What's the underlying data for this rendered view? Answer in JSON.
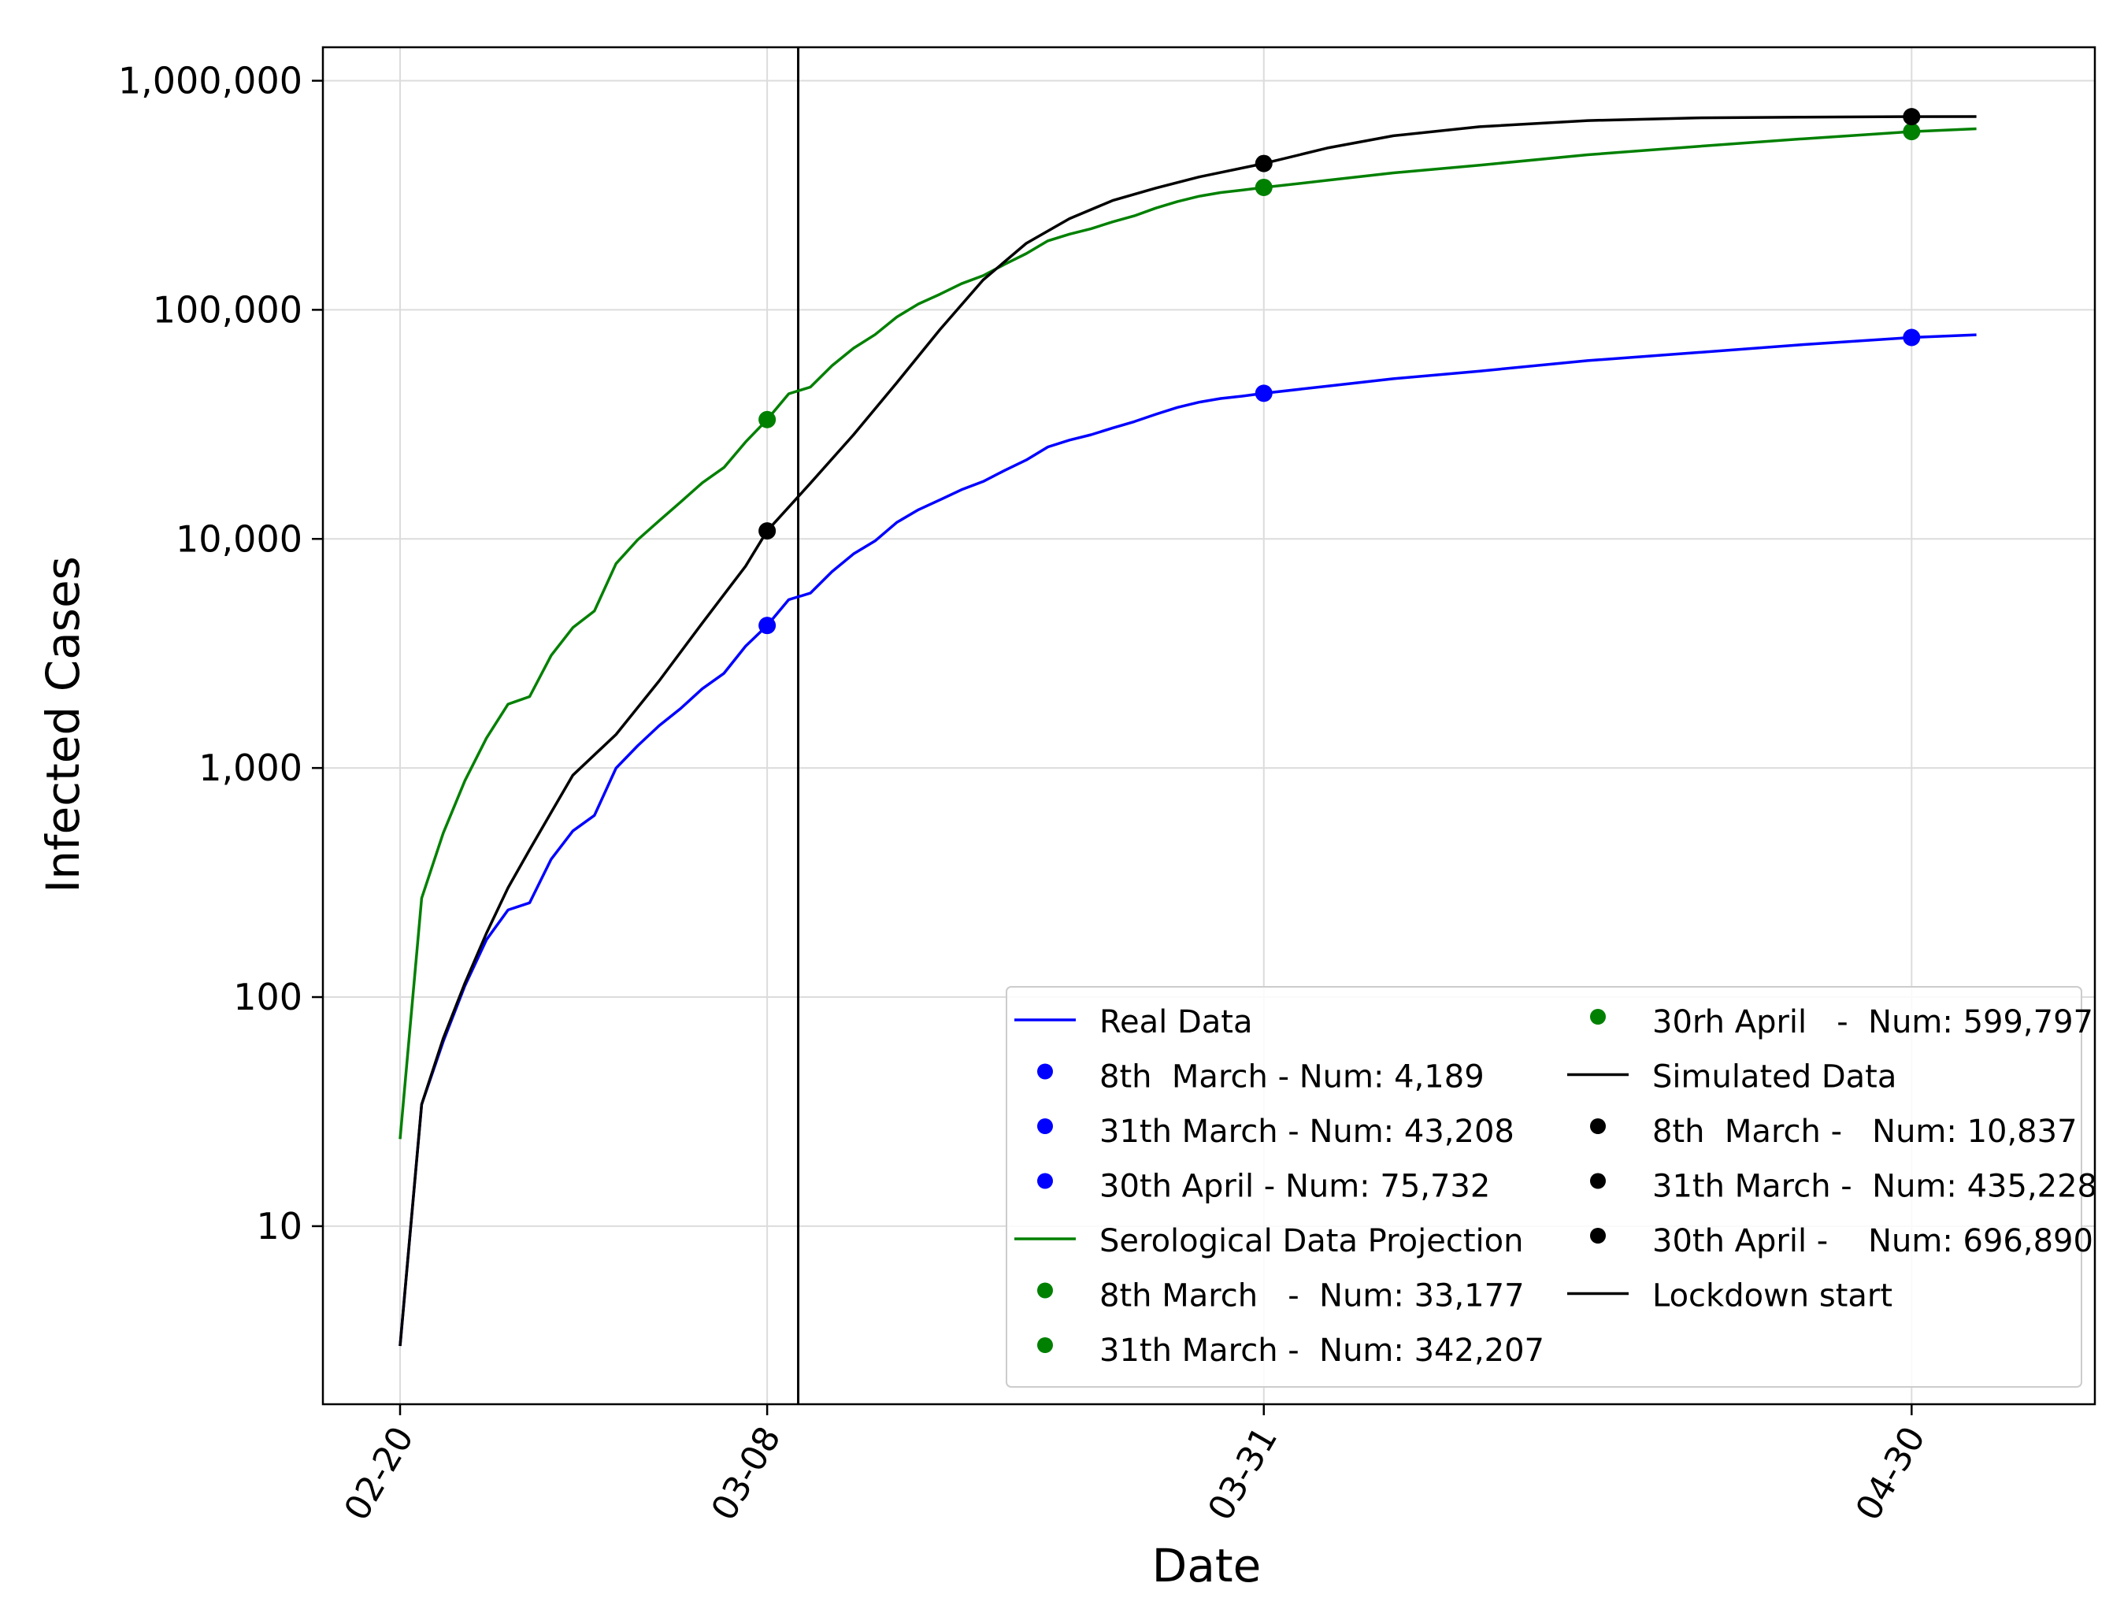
{
  "chart_data": {
    "type": "line",
    "xlabel": "Date",
    "ylabel": "Infected Cases",
    "y_scale": "log",
    "x_domain": [
      "2020-02-20",
      "2020-05-04"
    ],
    "ylim": [
      1.67,
      1400000
    ],
    "grid": true,
    "legend_position": "lower-right",
    "x_ticks": [
      {
        "date": "2020-02-20",
        "label": "02-20"
      },
      {
        "date": "2020-03-08",
        "label": "03-08"
      },
      {
        "date": "2020-03-31",
        "label": "03-31"
      },
      {
        "date": "2020-04-30",
        "label": "04-30"
      }
    ],
    "y_ticks": [
      {
        "value": 10,
        "label": "10"
      },
      {
        "value": 100,
        "label": "100"
      },
      {
        "value": 1000,
        "label": "1,000"
      },
      {
        "value": 10000,
        "label": "10,000"
      },
      {
        "value": 100000,
        "label": "100,000"
      },
      {
        "value": 1000000,
        "label": "1,000,000"
      }
    ],
    "series": [
      {
        "name": "Real Data",
        "color": "#0000ff",
        "points": [
          [
            "2020-02-20",
            3
          ],
          [
            "2020-02-21",
            34
          ],
          [
            "2020-02-22",
            64
          ],
          [
            "2020-02-23",
            112
          ],
          [
            "2020-02-24",
            178
          ],
          [
            "2020-02-25",
            240
          ],
          [
            "2020-02-26",
            258
          ],
          [
            "2020-02-27",
            400
          ],
          [
            "2020-02-28",
            531
          ],
          [
            "2020-02-29",
            621
          ],
          [
            "2020-03-01",
            998
          ],
          [
            "2020-03-02",
            1250
          ],
          [
            "2020-03-03",
            1530
          ],
          [
            "2020-03-04",
            1820
          ],
          [
            "2020-03-05",
            2220
          ],
          [
            "2020-03-06",
            2590
          ],
          [
            "2020-03-07",
            3400
          ],
          [
            "2020-03-08",
            4189
          ],
          [
            "2020-03-09",
            5430
          ],
          [
            "2020-03-10",
            5800
          ],
          [
            "2020-03-11",
            7190
          ],
          [
            "2020-03-12",
            8600
          ],
          [
            "2020-03-13",
            9800
          ],
          [
            "2020-03-14",
            11800
          ],
          [
            "2020-03-15",
            13400
          ],
          [
            "2020-03-16",
            14800
          ],
          [
            "2020-03-17",
            16400
          ],
          [
            "2020-03-18",
            17800
          ],
          [
            "2020-03-19",
            19900
          ],
          [
            "2020-03-20",
            22100
          ],
          [
            "2020-03-21",
            25200
          ],
          [
            "2020-03-22",
            27000
          ],
          [
            "2020-03-23",
            28500
          ],
          [
            "2020-03-24",
            30500
          ],
          [
            "2020-03-25",
            32500
          ],
          [
            "2020-03-26",
            35000
          ],
          [
            "2020-03-27",
            37500
          ],
          [
            "2020-03-28",
            39500
          ],
          [
            "2020-03-29",
            41000
          ],
          [
            "2020-03-30",
            42000
          ],
          [
            "2020-03-31",
            43208
          ],
          [
            "2020-04-03",
            46500
          ],
          [
            "2020-04-06",
            50000
          ],
          [
            "2020-04-10",
            54000
          ],
          [
            "2020-04-15",
            60000
          ],
          [
            "2020-04-20",
            65000
          ],
          [
            "2020-04-25",
            70500
          ],
          [
            "2020-04-30",
            75732
          ],
          [
            "2020-05-03",
            77800
          ]
        ]
      },
      {
        "name": "Serological Data Projection",
        "color": "#008000",
        "points": [
          [
            "2020-02-20",
            24
          ],
          [
            "2020-02-21",
            270
          ],
          [
            "2020-02-22",
            520
          ],
          [
            "2020-02-23",
            880
          ],
          [
            "2020-02-24",
            1350
          ],
          [
            "2020-02-25",
            1900
          ],
          [
            "2020-02-26",
            2050
          ],
          [
            "2020-02-27",
            3100
          ],
          [
            "2020-02-28",
            4100
          ],
          [
            "2020-02-29",
            4850
          ],
          [
            "2020-03-01",
            7800
          ],
          [
            "2020-03-02",
            9900
          ],
          [
            "2020-03-03",
            12000
          ],
          [
            "2020-03-04",
            14500
          ],
          [
            "2020-03-05",
            17600
          ],
          [
            "2020-03-06",
            20500
          ],
          [
            "2020-03-07",
            26500
          ],
          [
            "2020-03-08",
            33177
          ],
          [
            "2020-03-09",
            43000
          ],
          [
            "2020-03-10",
            46000
          ],
          [
            "2020-03-11",
            57000
          ],
          [
            "2020-03-12",
            68000
          ],
          [
            "2020-03-13",
            78000
          ],
          [
            "2020-03-14",
            93000
          ],
          [
            "2020-03-15",
            106000
          ],
          [
            "2020-03-16",
            117000
          ],
          [
            "2020-03-17",
            130000
          ],
          [
            "2020-03-18",
            141000
          ],
          [
            "2020-03-19",
            158000
          ],
          [
            "2020-03-20",
            176000
          ],
          [
            "2020-03-21",
            200000
          ],
          [
            "2020-03-22",
            214000
          ],
          [
            "2020-03-23",
            226000
          ],
          [
            "2020-03-24",
            242000
          ],
          [
            "2020-03-25",
            257000
          ],
          [
            "2020-03-26",
            278000
          ],
          [
            "2020-03-27",
            297000
          ],
          [
            "2020-03-28",
            313000
          ],
          [
            "2020-03-29",
            325000
          ],
          [
            "2020-03-30",
            333000
          ],
          [
            "2020-03-31",
            342207
          ],
          [
            "2020-04-03",
            368000
          ],
          [
            "2020-04-06",
            396000
          ],
          [
            "2020-04-10",
            428000
          ],
          [
            "2020-04-15",
            475000
          ],
          [
            "2020-04-20",
            516000
          ],
          [
            "2020-04-25",
            558000
          ],
          [
            "2020-04-30",
            599797
          ],
          [
            "2020-05-03",
            617000
          ]
        ]
      },
      {
        "name": "Simulated Data",
        "color": "#000000",
        "points": [
          [
            "2020-02-20",
            3
          ],
          [
            "2020-02-21",
            34
          ],
          [
            "2020-02-22",
            66
          ],
          [
            "2020-02-23",
            115
          ],
          [
            "2020-02-24",
            190
          ],
          [
            "2020-02-25",
            300
          ],
          [
            "2020-02-26",
            440
          ],
          [
            "2020-02-27",
            640
          ],
          [
            "2020-02-28",
            930
          ],
          [
            "2020-03-01",
            1400
          ],
          [
            "2020-03-03",
            2400
          ],
          [
            "2020-03-05",
            4300
          ],
          [
            "2020-03-07",
            7600
          ],
          [
            "2020-03-08",
            10837
          ],
          [
            "2020-03-10",
            17500
          ],
          [
            "2020-03-12",
            28500
          ],
          [
            "2020-03-14",
            48000
          ],
          [
            "2020-03-16",
            82000
          ],
          [
            "2020-03-18",
            135000
          ],
          [
            "2020-03-20",
            195000
          ],
          [
            "2020-03-22",
            250000
          ],
          [
            "2020-03-24",
            300000
          ],
          [
            "2020-03-26",
            340000
          ],
          [
            "2020-03-28",
            380000
          ],
          [
            "2020-03-31",
            435228
          ],
          [
            "2020-04-03",
            510000
          ],
          [
            "2020-04-06",
            575000
          ],
          [
            "2020-04-10",
            630000
          ],
          [
            "2020-04-15",
            670000
          ],
          [
            "2020-04-20",
            688000
          ],
          [
            "2020-04-25",
            694000
          ],
          [
            "2020-04-30",
            696890
          ],
          [
            "2020-05-03",
            697500
          ]
        ]
      }
    ],
    "markers": [
      {
        "series": "Real Data",
        "label": "8th  March - Num: 4,189",
        "date": "2020-03-08",
        "value": 4189,
        "color": "#0000ff"
      },
      {
        "series": "Real Data",
        "label": "31th March - Num: 43,208",
        "date": "2020-03-31",
        "value": 43208,
        "color": "#0000ff"
      },
      {
        "series": "Real Data",
        "label": "30th April - Num: 75,732",
        "date": "2020-04-30",
        "value": 75732,
        "color": "#0000ff"
      },
      {
        "series": "Serological Data Projection",
        "label": "8th March   -  Num: 33,177",
        "date": "2020-03-08",
        "value": 33177,
        "color": "#008000"
      },
      {
        "series": "Serological Data Projection",
        "label": "31th March -  Num: 342,207",
        "date": "2020-03-31",
        "value": 342207,
        "color": "#008000"
      },
      {
        "series": "Serological Data Projection",
        "label": "30rh April   -  Num: 599,797",
        "date": "2020-04-30",
        "value": 599797,
        "color": "#008000"
      },
      {
        "series": "Simulated Data",
        "label": "8th  March -   Num: 10,837",
        "date": "2020-03-08",
        "value": 10837,
        "color": "#000000"
      },
      {
        "series": "Simulated Data",
        "label": "31th March -  Num: 435,228",
        "date": "2020-03-31",
        "value": 435228,
        "color": "#000000"
      },
      {
        "series": "Simulated Data",
        "label": "30th April -    Num: 696,890",
        "date": "2020-04-30",
        "value": 696890,
        "color": "#000000"
      }
    ],
    "vertical_lines": [
      {
        "label": "Lockdown start",
        "date": "2020-03-09",
        "color": "#000000"
      }
    ],
    "legend": {
      "columns": [
        [
          {
            "kind": "line",
            "label": "Real Data",
            "color": "#0000ff"
          },
          {
            "kind": "dot",
            "label": "8th  March - Num: 4,189",
            "color": "#0000ff"
          },
          {
            "kind": "dot",
            "label": "31th March - Num: 43,208",
            "color": "#0000ff"
          },
          {
            "kind": "dot",
            "label": "30th April - Num: 75,732",
            "color": "#0000ff"
          },
          {
            "kind": "line",
            "label": "Serological Data Projection",
            "color": "#008000"
          },
          {
            "kind": "dot",
            "label": "8th March   -  Num: 33,177",
            "color": "#008000"
          },
          {
            "kind": "dot",
            "label": "31th March -  Num: 342,207",
            "color": "#008000"
          }
        ],
        [
          {
            "kind": "dot",
            "label": "30rh April   -  Num: 599,797",
            "color": "#008000"
          },
          {
            "kind": "line",
            "label": "Simulated Data",
            "color": "#000000"
          },
          {
            "kind": "dot",
            "label": "8th  March -   Num: 10,837",
            "color": "#000000"
          },
          {
            "kind": "dot",
            "label": "31th March -  Num: 435,228",
            "color": "#000000"
          },
          {
            "kind": "dot",
            "label": "30th April -    Num: 696,890",
            "color": "#000000"
          },
          {
            "kind": "line",
            "label": "Lockdown start",
            "color": "#000000"
          }
        ]
      ]
    }
  }
}
